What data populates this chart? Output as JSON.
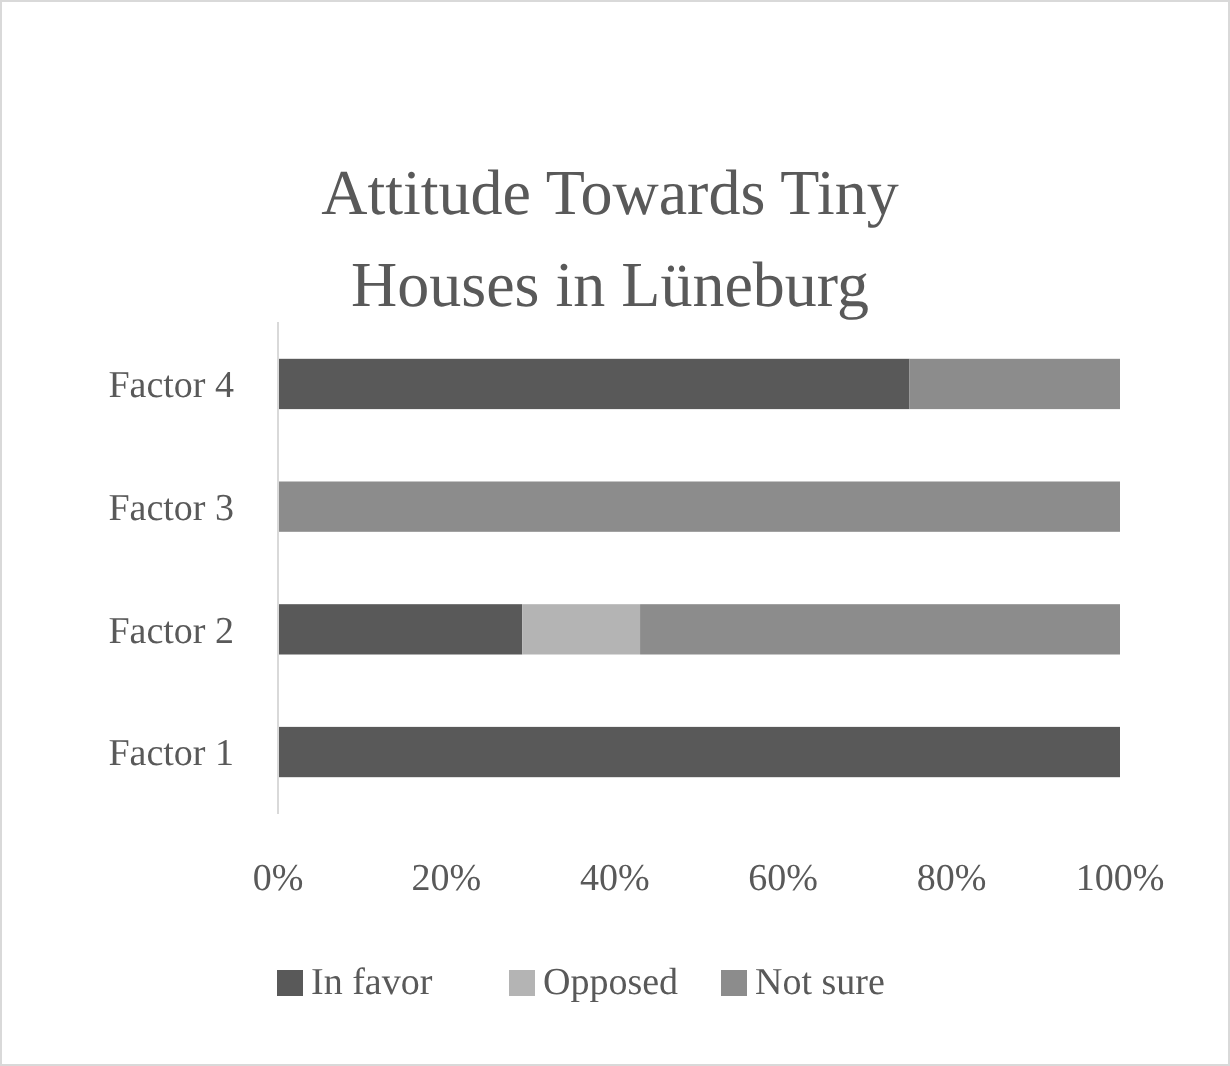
{
  "chart_data": {
    "type": "bar",
    "orientation": "horizontal",
    "stacked": true,
    "title": "Attitude Towards Tiny Houses in Lüneburg",
    "categories": [
      "Factor 4",
      "Factor 3",
      "Factor 2",
      "Factor 1"
    ],
    "series": [
      {
        "name": "In favor",
        "color": "#595959",
        "values": [
          75,
          0,
          29,
          100
        ]
      },
      {
        "name": "Opposed",
        "color": "#b4b4b4",
        "values": [
          0,
          0,
          14,
          0
        ]
      },
      {
        "name": "Not sure",
        "color": "#8c8c8c",
        "values": [
          25,
          100,
          57,
          0
        ]
      }
    ],
    "xlim": [
      0,
      100
    ],
    "xticks": [
      {
        "value": 0,
        "label": "0%"
      },
      {
        "value": 20,
        "label": "20%"
      },
      {
        "value": 40,
        "label": "40%"
      },
      {
        "value": 60,
        "label": "60%"
      },
      {
        "value": 80,
        "label": "80%"
      },
      {
        "value": 100,
        "label": "100%"
      }
    ],
    "grid": false,
    "legend": "bottom"
  }
}
